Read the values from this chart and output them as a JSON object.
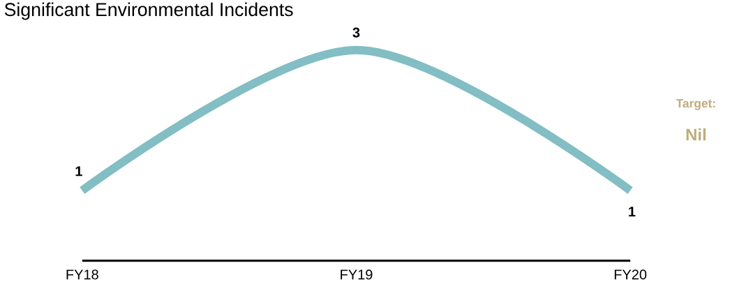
{
  "chart_data": {
    "type": "line",
    "title": "Significant Environmental Incidents",
    "categories": [
      "FY18",
      "FY19",
      "FY20"
    ],
    "series": [
      {
        "color": "#82bec4",
        "values": [
          1,
          3,
          1
        ]
      }
    ],
    "tick_labels": "x",
    "data_labels": true,
    "annotations": [
      "Target:",
      "Nil"
    ]
  }
}
